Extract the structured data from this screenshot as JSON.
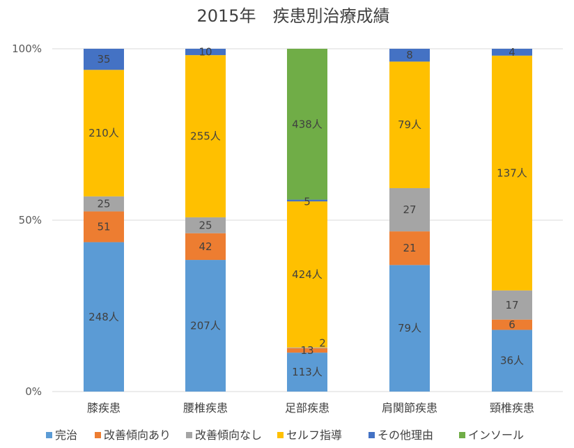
{
  "chart_data": {
    "type": "bar",
    "stacked": "percent",
    "title": "2015年　疾患別治療成績",
    "categories": [
      "膝疾患",
      "腰椎疾患",
      "足部疾患",
      "肩関節疾患",
      "頸椎疾患"
    ],
    "ytick_labels": [
      "0%",
      "50%",
      "100%"
    ],
    "ylim": [
      0,
      100
    ],
    "grid": true,
    "legend_position": "bottom",
    "series": [
      {
        "name": "完治",
        "color": "#5b9bd5",
        "values": [
          248,
          207,
          113,
          79,
          36
        ],
        "labels": [
          "248人",
          "207人",
          "113人",
          "79人",
          "36人"
        ]
      },
      {
        "name": "改善傾向あり",
        "color": "#ed7d31",
        "values": [
          51,
          42,
          13,
          21,
          6
        ],
        "labels": [
          "51",
          "42",
          "13",
          "21",
          "6"
        ]
      },
      {
        "name": "改善傾向なし",
        "color": "#a5a5a5",
        "values": [
          25,
          25,
          2,
          27,
          17
        ],
        "labels": [
          "25",
          "25",
          "2",
          "27",
          "17"
        ]
      },
      {
        "name": "セルフ指導",
        "color": "#ffc000",
        "values": [
          210,
          255,
          424,
          79,
          137
        ],
        "labels": [
          "210人",
          "255人",
          "424人",
          "79人",
          "137人"
        ]
      },
      {
        "name": "その他理由",
        "color": "#4472c4",
        "values": [
          35,
          10,
          5,
          8,
          4
        ],
        "labels": [
          "35",
          "10",
          "5",
          "8",
          "4"
        ]
      },
      {
        "name": "インソール",
        "color": "#70ad47",
        "values": [
          0,
          0,
          438,
          0,
          0
        ],
        "labels": [
          "",
          "",
          "438人",
          "",
          ""
        ]
      }
    ]
  }
}
